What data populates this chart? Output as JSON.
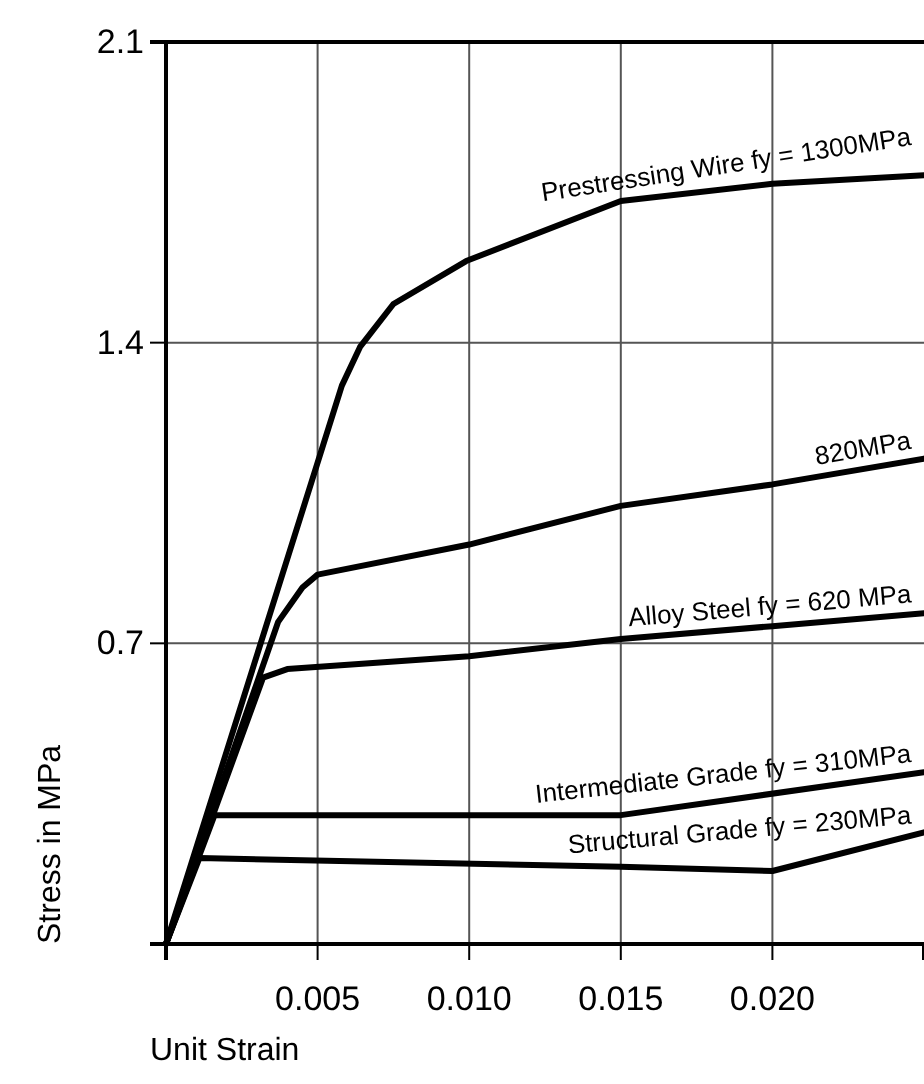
{
  "chart_data": {
    "type": "line",
    "xlabel": "Unit Strain",
    "ylabel": "Stress in MPa",
    "xlim": [
      0,
      0.025
    ],
    "ylim": [
      0,
      2.1
    ],
    "xticks": [
      {
        "value": 0,
        "label": null
      },
      0.005,
      {
        "value": 0.01,
        "label": "0.010"
      },
      0.015,
      {
        "value": 0.02,
        "label": "0.020"
      }
    ],
    "yticks": [
      {
        "value": 0,
        "label": null
      },
      0.7,
      1.4,
      2.1
    ],
    "grid": true,
    "legend": false,
    "series": [
      {
        "name": "Prestressing Wire fy = 1300MPa",
        "color": "#000000",
        "x": [
          0,
          0.0058,
          0.0064,
          0.0075,
          0.0099,
          0.015,
          0.02,
          0.025
        ],
        "values": [
          0,
          1.3,
          1.39,
          1.49,
          1.59,
          1.73,
          1.77,
          1.79
        ]
      },
      {
        "name": "820MPa",
        "color": "#000000",
        "x": [
          0,
          0.0037,
          0.0045,
          0.005,
          0.01,
          0.015,
          0.02,
          0.025
        ],
        "values": [
          0,
          0.75,
          0.83,
          0.86,
          0.93,
          1.02,
          1.07,
          1.13
        ]
      },
      {
        "name": "Alloy Steel fy = 620 MPa",
        "color": "#000000",
        "x": [
          0,
          0.0032,
          0.004,
          0.01,
          0.015,
          0.02,
          0.025
        ],
        "values": [
          0,
          0.62,
          0.64,
          0.67,
          0.71,
          0.74,
          0.77
        ]
      },
      {
        "name": "Intermediate Grade fy = 310MPa",
        "color": "#000000",
        "x": [
          0,
          0.0016,
          0.015,
          0.025
        ],
        "values": [
          0,
          0.3,
          0.3,
          0.4
        ]
      },
      {
        "name": "Structural Grade fy = 230MPa",
        "color": "#000000",
        "x": [
          0,
          0.0011,
          0.015,
          0.02,
          0.025
        ],
        "values": [
          0,
          0.2,
          0.18,
          0.17,
          0.26
        ]
      }
    ]
  }
}
